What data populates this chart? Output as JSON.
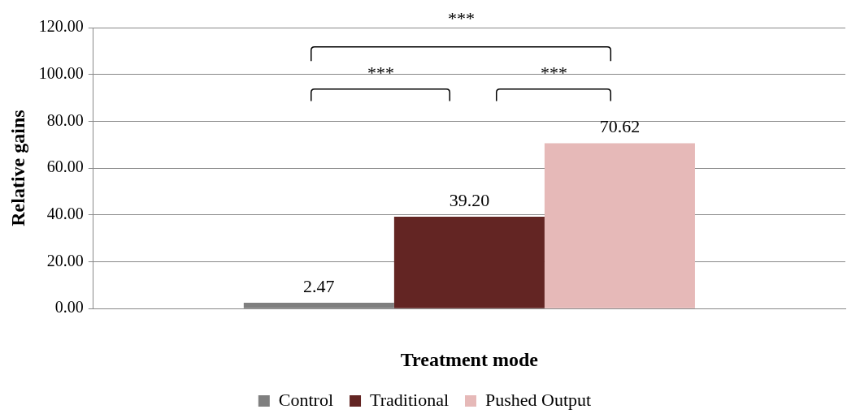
{
  "chart_data": {
    "type": "bar",
    "xlabel": "Treatment mode",
    "ylabel": "Relative gains",
    "categories": [
      null
    ],
    "series": [
      {
        "name": "Control",
        "color": "#7f7f7f",
        "values": [
          2.47
        ],
        "value_labels": [
          "2.47"
        ]
      },
      {
        "name": "Traditional",
        "color": "#632523",
        "values": [
          39.2
        ],
        "value_labels": [
          "39.20"
        ]
      },
      {
        "name": "Pushed Output",
        "color": "#e6b9b8",
        "values": [
          70.62
        ],
        "value_labels": [
          "70.62"
        ]
      }
    ],
    "ylim": [
      0,
      120
    ],
    "yticks": [
      {
        "value": 0,
        "label": "0.00"
      },
      {
        "value": 20,
        "label": "20.00"
      },
      {
        "value": 40,
        "label": "40.00"
      },
      {
        "value": 60,
        "label": "60.00"
      },
      {
        "value": 80,
        "label": "80.00"
      },
      {
        "value": 100,
        "label": "100.00"
      },
      {
        "value": 120,
        "label": "120.00"
      }
    ],
    "grid": "y",
    "legend": "bottom",
    "annotations": [
      "***",
      "***",
      "***"
    ]
  }
}
